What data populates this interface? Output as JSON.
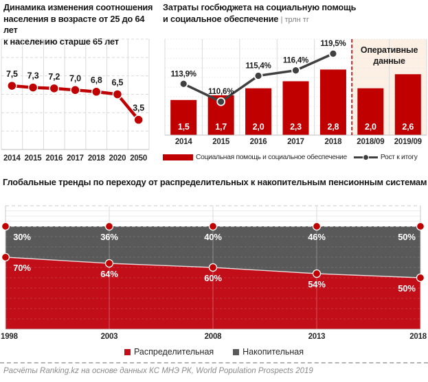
{
  "colors": {
    "red": "#c00000",
    "area_red": "#c10e19",
    "line_gray": "#404040",
    "area_gray": "#595959",
    "grid": "#d9d9d9",
    "grid_faint": "#ececec",
    "axis": "#bfbfbf",
    "peach_bg": "#fcefe3",
    "text": "#1a1a1a",
    "muted": "#7f7f7f"
  },
  "chart_data": [
    {
      "id": "age-ratio",
      "type": "line",
      "title": "Динамика изменения соотношения населения в возрасте от 25 до 64 лет к населению старше 65 лет",
      "title_lines": [
        "Динамика  изменения  соотношения",
        "населения  в возрасте  от 25 до 64 лет",
        "к населению старше  65 лет"
      ],
      "categories": [
        "2014",
        "2015",
        "2016",
        "2017",
        "2018",
        "2020",
        "2050"
      ],
      "values": [
        7.5,
        7.3,
        7.2,
        7.0,
        6.8,
        6.5,
        3.5
      ],
      "labels": [
        "7,5",
        "7,3",
        "7,2",
        "7,0",
        "6,8",
        "6,5",
        "3,5"
      ],
      "ylim": [
        0,
        13
      ],
      "grid": true,
      "series_color": "#c00000"
    },
    {
      "id": "social-budget",
      "type": "bar+line",
      "title": "Затраты госбюджета на социальную помощь и социальное обеспечение",
      "title_lines": [
        "Затраты госбюджета на социальную помощь",
        "и социальное обеспечение"
      ],
      "subtitle": "| трлн тг",
      "categories": [
        "2014",
        "2015",
        "2016",
        "2017",
        "2018",
        "2018/09",
        "2019/09"
      ],
      "series": [
        {
          "name": "Социальная помощь и социальное обеспечение",
          "type": "bar",
          "color": "#c00000",
          "values": [
            1.5,
            1.7,
            2.0,
            2.3,
            2.8,
            2.0,
            2.6
          ],
          "labels": [
            "1,5",
            "1,7",
            "2,0",
            "2,3",
            "2,8",
            "2,0",
            "2,6"
          ]
        },
        {
          "name": "Рост к итогу",
          "type": "line",
          "color": "#404040",
          "values": [
            113.9,
            110.6,
            115.4,
            116.4,
            119.5,
            null,
            null
          ],
          "labels": [
            "113,9%",
            "110,6%",
            "115,4%",
            "116,4%",
            "119,5%"
          ]
        }
      ],
      "annotation": {
        "text": "Оперативные данные",
        "lines": [
          "Оперативные",
          "данные"
        ],
        "applies_to": [
          "2018/09",
          "2019/09"
        ]
      },
      "bar_ylim": [
        0,
        4.1
      ],
      "line_ylim": [
        104.4,
        122.2
      ],
      "legend_position": "bottom"
    },
    {
      "id": "pension-systems",
      "type": "area",
      "stacked": true,
      "title": "Глобальные тренды по переходу от распределительных к накопительным пенсионным системам",
      "categories": [
        "1998",
        "2003",
        "2008",
        "2013",
        "2018"
      ],
      "series": [
        {
          "name": "Распределительная",
          "color": "#c10e19",
          "values": [
            70,
            64,
            60,
            54,
            50
          ],
          "labels": [
            "70%",
            "64%",
            "60%",
            "54%",
            "50%"
          ]
        },
        {
          "name": "Накопительная",
          "color": "#595959",
          "values": [
            30,
            36,
            40,
            46,
            50
          ],
          "labels": [
            "30%",
            "36%",
            "40%",
            "46%",
            "50%"
          ]
        }
      ],
      "ylim": [
        0,
        120
      ],
      "legend_position": "bottom"
    }
  ],
  "footer": "Расчёты Ranking.kz на основе данных  КС МНЭ РК, World Population Prospects 2019"
}
